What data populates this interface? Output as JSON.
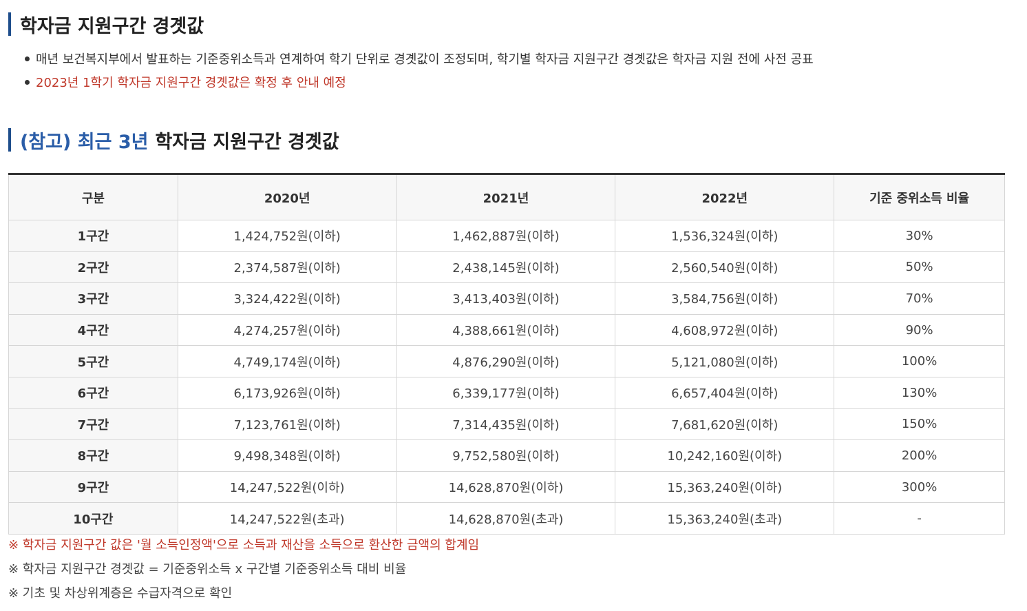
{
  "title1": "학자금 지원구간 경곗값",
  "bullets": [
    "매년 보건복지부에서 발표하는 기준중위소득과 연계하여 학기 단위로 경곗값이 조정되며, 학기별 학자금 지원구간 경곗값은 학자금 지원 전에 사전 공표",
    "2023년 1학기 학자금 지원구간 경곗값은 확정 후 안내 예정"
  ],
  "title2": {
    "accent": "(참고) 최근 3년",
    "rest": "학자금 지원구간 경곗값"
  },
  "table": {
    "headers": [
      "구분",
      "2020년",
      "2021년",
      "2022년",
      "기준 중위소득 비율"
    ],
    "rows": [
      [
        "1구간",
        "1,424,752원(이하)",
        "1,462,887원(이하)",
        "1,536,324원(이하)",
        "30%"
      ],
      [
        "2구간",
        "2,374,587원(이하)",
        "2,438,145원(이하)",
        "2,560,540원(이하)",
        "50%"
      ],
      [
        "3구간",
        "3,324,422원(이하)",
        "3,413,403원(이하)",
        "3,584,756원(이하)",
        "70%"
      ],
      [
        "4구간",
        "4,274,257원(이하)",
        "4,388,661원(이하)",
        "4,608,972원(이하)",
        "90%"
      ],
      [
        "5구간",
        "4,749,174원(이하)",
        "4,876,290원(이하)",
        "5,121,080원(이하)",
        "100%"
      ],
      [
        "6구간",
        "6,173,926원(이하)",
        "6,339,177원(이하)",
        "6,657,404원(이하)",
        "130%"
      ],
      [
        "7구간",
        "7,123,761원(이하)",
        "7,314,435원(이하)",
        "7,681,620원(이하)",
        "150%"
      ],
      [
        "8구간",
        "9,498,348원(이하)",
        "9,752,580원(이하)",
        "10,242,160원(이하)",
        "200%"
      ],
      [
        "9구간",
        "14,247,522원(이하)",
        "14,628,870원(이하)",
        "15,363,240원(이하)",
        "300%"
      ],
      [
        "10구간",
        "14,247,522원(초과)",
        "14,628,870원(초과)",
        "15,363,240원(초과)",
        "-"
      ]
    ]
  },
  "notes": [
    "※ 학자금 지원구간 값은 '월 소득인정액'으로 소득과 재산을 소득으로 환산한 금액의 합계임",
    "※ 학자금 지원구간 경곗값 = 기준중위소득 x 구간별 기준중위소득 대비 비율",
    "※ 기초 및 차상위계층은 수급자격으로 확인"
  ],
  "colors": {
    "accent_blue": "#2a5da8",
    "title_bar": "#1f4e8c",
    "note_red": "#c0392b"
  }
}
